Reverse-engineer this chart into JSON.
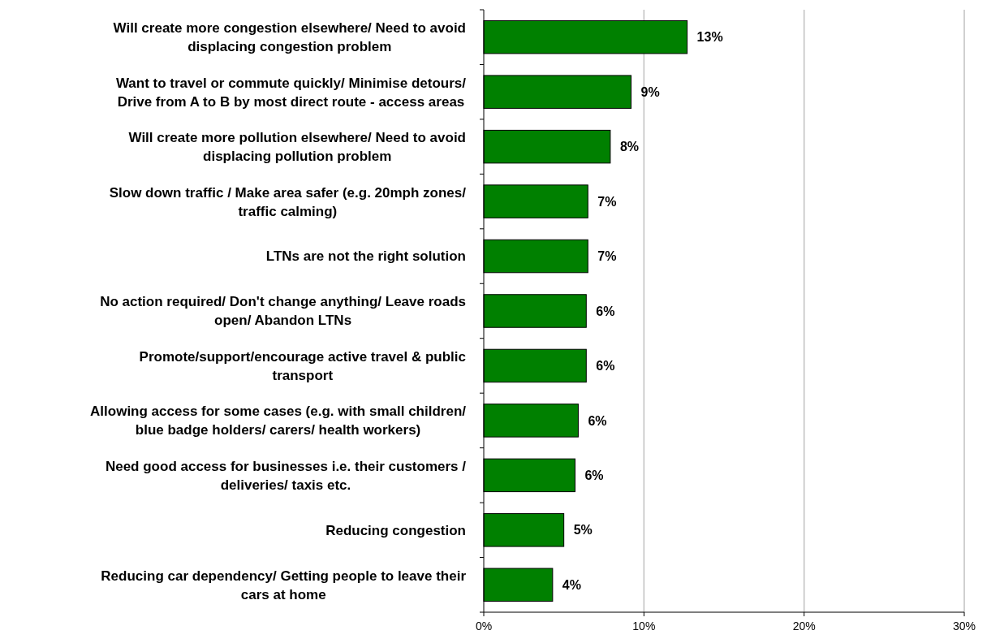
{
  "chart_data": {
    "type": "bar",
    "orientation": "horizontal",
    "categories": [
      "Will create more congestion elsewhere/ Need to avoid\ndisplacing congestion problem",
      "Want to travel or commute quickly/ Minimise detours/\nDrive from A to B by most direct route - access areas",
      "Will create more pollution elsewhere/ Need to avoid\ndisplacing pollution problem",
      "Slow down traffic / Make area safer (e.g. 20mph zones/\ntraffic calming)",
      "LTNs are not the right solution",
      "No action required/ Don't change anything/ Leave roads\nopen/ Abandon LTNs",
      "Promote/support/encourage active travel & public\ntransport",
      "Allowing access for some cases (e.g. with small children/\nblue badge holders/ carers/ health workers)",
      "Need good access for businesses i.e. their customers /\ndeliveries/ taxis etc.",
      "Reducing congestion",
      "Reducing car dependency/ Getting people to leave their\ncars at home"
    ],
    "values": [
      12.7,
      9.2,
      7.9,
      6.5,
      6.5,
      6.4,
      6.4,
      5.9,
      5.7,
      5.0,
      4.3
    ],
    "value_labels": [
      "13%",
      "9%",
      "8%",
      "7%",
      "7%",
      "6%",
      "6%",
      "6%",
      "6%",
      "5%",
      "4%"
    ],
    "color": "#008000",
    "xlim": [
      0,
      30
    ],
    "xticks": [
      {
        "value": 0,
        "label": "0%"
      },
      {
        "value": 10,
        "label": "10%"
      },
      {
        "value": 20,
        "label": "20%"
      },
      {
        "value": 30,
        "label": "30%"
      }
    ],
    "grid": "x"
  }
}
